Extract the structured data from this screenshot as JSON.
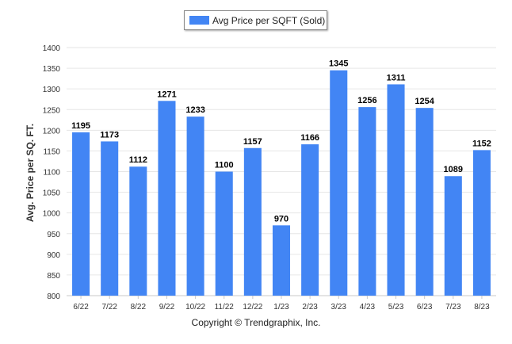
{
  "legend": {
    "label": "Avg Price per SQFT (Sold)"
  },
  "footer": {
    "copyright": "Copyright © Trendgraphix, Inc."
  },
  "colors": {
    "bar": "#4285f4",
    "grid": "#e6e6e6",
    "axis_text": "#333333"
  },
  "chart_data": {
    "type": "bar",
    "title": "",
    "xlabel": "",
    "ylabel": "Avg. Price per SQ. FT.",
    "ylim": [
      800,
      1400
    ],
    "y_ticks": [
      800,
      850,
      900,
      950,
      1000,
      1050,
      1100,
      1150,
      1200,
      1250,
      1300,
      1350,
      1400
    ],
    "grid": true,
    "legend_position": "top-center",
    "categories": [
      "6/22",
      "7/22",
      "8/22",
      "9/22",
      "10/22",
      "11/22",
      "12/22",
      "1/23",
      "2/23",
      "3/23",
      "4/23",
      "5/23",
      "6/23",
      "7/23",
      "8/23"
    ],
    "series": [
      {
        "name": "Avg Price per SQFT (Sold)",
        "values": [
          1195,
          1173,
          1112,
          1271,
          1233,
          1100,
          1157,
          970,
          1166,
          1345,
          1256,
          1311,
          1254,
          1089,
          1152
        ]
      }
    ]
  }
}
